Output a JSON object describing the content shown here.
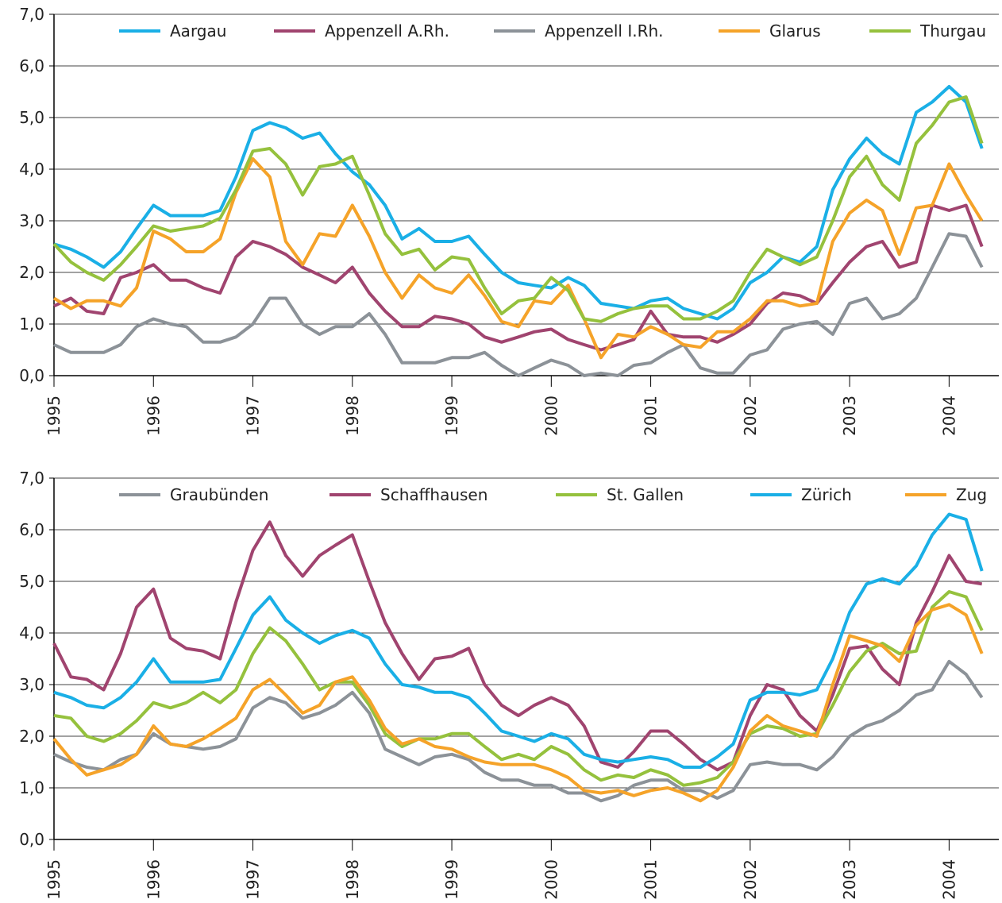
{
  "chart_data": [
    {
      "type": "line",
      "x": [
        1995,
        1995.17,
        1995.33,
        1995.5,
        1995.67,
        1995.83,
        1996,
        1996.17,
        1996.33,
        1996.5,
        1996.67,
        1996.83,
        1997,
        1997.17,
        1997.33,
        1997.5,
        1997.67,
        1997.83,
        1998,
        1998.17,
        1998.33,
        1998.5,
        1998.67,
        1998.83,
        1999,
        1999.17,
        1999.33,
        1999.5,
        1999.67,
        1999.83,
        2000,
        2000.17,
        2000.33,
        2000.5,
        2000.67,
        2000.83,
        2001,
        2001.17,
        2001.33,
        2001.5,
        2001.67,
        2001.83,
        2002,
        2002.17,
        2002.33,
        2002.5,
        2002.67,
        2002.83,
        2003,
        2003.17,
        2003.33,
        2003.5,
        2003.67,
        2003.83,
        2004,
        2004.17,
        2004.33
      ],
      "xlim": [
        1995,
        2004.5
      ],
      "xticks": [
        1995,
        1996,
        1997,
        1998,
        1999,
        2000,
        2001,
        2002,
        2003,
        2004
      ],
      "ylim": [
        0,
        7
      ],
      "yticks": [
        {
          "value": 0,
          "label": "0,0"
        },
        {
          "value": 1,
          "label": "1,0"
        },
        {
          "value": 2,
          "label": "2,0"
        },
        {
          "value": 3,
          "label": "3,0"
        },
        {
          "value": 4,
          "label": "4,0"
        },
        {
          "value": 5,
          "label": "5,0"
        },
        {
          "value": 6,
          "label": "6,0"
        },
        {
          "value": 7,
          "label": "7,0"
        }
      ],
      "grid": true,
      "legend": "top",
      "series": [
        {
          "name": "Aargau",
          "color": "#1aafe6",
          "values": [
            2.55,
            2.45,
            2.3,
            2.1,
            2.4,
            2.85,
            3.3,
            3.1,
            3.1,
            3.1,
            3.2,
            3.85,
            4.75,
            4.9,
            4.8,
            4.6,
            4.7,
            4.3,
            3.95,
            3.7,
            3.3,
            2.65,
            2.85,
            2.6,
            2.6,
            2.7,
            2.35,
            2.0,
            1.8,
            1.75,
            1.7,
            1.9,
            1.75,
            1.4,
            1.35,
            1.3,
            1.45,
            1.5,
            1.3,
            1.2,
            1.1,
            1.3,
            1.8,
            2.0,
            2.3,
            2.2,
            2.5,
            3.6,
            4.2,
            4.6,
            4.3,
            4.1,
            5.1,
            5.3,
            5.6,
            5.3,
            4.4
          ]
        },
        {
          "name": "Appenzell A.Rh.",
          "color": "#a0446f",
          "values": [
            1.35,
            1.5,
            1.25,
            1.2,
            1.9,
            2.0,
            2.15,
            1.85,
            1.85,
            1.7,
            1.6,
            2.3,
            2.6,
            2.5,
            2.35,
            2.1,
            1.95,
            1.8,
            2.1,
            1.6,
            1.25,
            0.95,
            0.95,
            1.15,
            1.1,
            1.0,
            0.75,
            0.65,
            0.75,
            0.85,
            0.9,
            0.7,
            0.6,
            0.5,
            0.6,
            0.7,
            1.25,
            0.8,
            0.75,
            0.75,
            0.65,
            0.8,
            1.0,
            1.4,
            1.6,
            1.55,
            1.4,
            1.8,
            2.2,
            2.5,
            2.6,
            2.1,
            2.2,
            3.3,
            3.2,
            3.3,
            2.5
          ]
        },
        {
          "name": "Appenzell I.Rh.",
          "color": "#8c9298",
          "values": [
            0.6,
            0.45,
            0.45,
            0.45,
            0.6,
            0.95,
            1.1,
            1.0,
            0.95,
            0.65,
            0.65,
            0.75,
            1.0,
            1.5,
            1.5,
            1.0,
            0.8,
            0.95,
            0.95,
            1.2,
            0.8,
            0.25,
            0.25,
            0.25,
            0.35,
            0.35,
            0.45,
            0.2,
            0,
            0.15,
            0.3,
            0.2,
            0,
            0.05,
            0,
            0.2,
            0.25,
            0.45,
            0.6,
            0.15,
            0.05,
            0.05,
            0.4,
            0.5,
            0.9,
            1.0,
            1.05,
            0.8,
            1.4,
            1.5,
            1.1,
            1.2,
            1.5,
            2.1,
            2.75,
            2.7,
            2.1
          ]
        },
        {
          "name": "Glarus",
          "color": "#f5a329",
          "values": [
            1.5,
            1.3,
            1.45,
            1.45,
            1.35,
            1.7,
            2.8,
            2.65,
            2.4,
            2.4,
            2.65,
            3.55,
            4.2,
            3.85,
            2.6,
            2.15,
            2.75,
            2.7,
            3.3,
            2.7,
            2.0,
            1.5,
            1.95,
            1.7,
            1.6,
            1.95,
            1.55,
            1.05,
            0.95,
            1.45,
            1.4,
            1.75,
            1.1,
            0.35,
            0.8,
            0.75,
            0.95,
            0.8,
            0.6,
            0.55,
            0.85,
            0.85,
            1.1,
            1.45,
            1.45,
            1.35,
            1.4,
            2.6,
            3.15,
            3.4,
            3.2,
            2.35,
            3.25,
            3.3,
            4.1,
            3.5,
            3.0
          ]
        },
        {
          "name": "Thurgau",
          "color": "#95c13d",
          "values": [
            2.55,
            2.2,
            2.0,
            1.85,
            2.15,
            2.5,
            2.9,
            2.8,
            2.85,
            2.9,
            3.05,
            3.6,
            4.35,
            4.4,
            4.1,
            3.5,
            4.05,
            4.1,
            4.25,
            3.5,
            2.75,
            2.35,
            2.45,
            2.05,
            2.3,
            2.25,
            1.7,
            1.2,
            1.45,
            1.5,
            1.9,
            1.65,
            1.1,
            1.05,
            1.2,
            1.3,
            1.35,
            1.35,
            1.1,
            1.1,
            1.25,
            1.45,
            2.0,
            2.45,
            2.3,
            2.15,
            2.3,
            3.0,
            3.85,
            4.25,
            3.7,
            3.4,
            4.5,
            4.85,
            5.3,
            5.4,
            4.5
          ]
        }
      ]
    },
    {
      "type": "line",
      "x": [
        1995,
        1995.17,
        1995.33,
        1995.5,
        1995.67,
        1995.83,
        1996,
        1996.17,
        1996.33,
        1996.5,
        1996.67,
        1996.83,
        1997,
        1997.17,
        1997.33,
        1997.5,
        1997.67,
        1997.83,
        1998,
        1998.17,
        1998.33,
        1998.5,
        1998.67,
        1998.83,
        1999,
        1999.17,
        1999.33,
        1999.5,
        1999.67,
        1999.83,
        2000,
        2000.17,
        2000.33,
        2000.5,
        2000.67,
        2000.83,
        2001,
        2001.17,
        2001.33,
        2001.5,
        2001.67,
        2001.83,
        2002,
        2002.17,
        2002.33,
        2002.5,
        2002.67,
        2002.83,
        2003,
        2003.17,
        2003.33,
        2003.5,
        2003.67,
        2003.83,
        2004,
        2004.17,
        2004.33
      ],
      "xlim": [
        1995,
        2004.5
      ],
      "xticks": [
        1995,
        1996,
        1997,
        1998,
        1999,
        2000,
        2001,
        2002,
        2003,
        2004
      ],
      "ylim": [
        0,
        7
      ],
      "yticks": [
        {
          "value": 0,
          "label": "0,0"
        },
        {
          "value": 1,
          "label": "1,0"
        },
        {
          "value": 2,
          "label": "2,0"
        },
        {
          "value": 3,
          "label": "3,0"
        },
        {
          "value": 4,
          "label": "4,0"
        },
        {
          "value": 5,
          "label": "5,0"
        },
        {
          "value": 6,
          "label": "6,0"
        },
        {
          "value": 7,
          "label": "7,0"
        }
      ],
      "grid": true,
      "legend": "top",
      "series": [
        {
          "name": "Graubünden",
          "color": "#8c9298",
          "values": [
            1.65,
            1.5,
            1.4,
            1.35,
            1.55,
            1.65,
            2.05,
            1.85,
            1.8,
            1.75,
            1.8,
            1.95,
            2.55,
            2.75,
            2.65,
            2.35,
            2.45,
            2.6,
            2.85,
            2.45,
            1.75,
            1.6,
            1.45,
            1.6,
            1.65,
            1.55,
            1.3,
            1.15,
            1.15,
            1.05,
            1.05,
            0.9,
            0.9,
            0.75,
            0.85,
            1.05,
            1.15,
            1.15,
            0.95,
            0.95,
            0.8,
            0.95,
            1.45,
            1.5,
            1.45,
            1.45,
            1.35,
            1.6,
            2.0,
            2.2,
            2.3,
            2.5,
            2.8,
            2.9,
            3.45,
            3.2,
            2.75
          ]
        },
        {
          "name": "Schaffhausen",
          "color": "#a0446f",
          "values": [
            3.8,
            3.15,
            3.1,
            2.9,
            3.6,
            4.5,
            4.85,
            3.9,
            3.7,
            3.65,
            3.5,
            4.6,
            5.6,
            6.15,
            5.5,
            5.1,
            5.5,
            5.7,
            5.9,
            5.0,
            4.2,
            3.6,
            3.1,
            3.5,
            3.55,
            3.7,
            3.0,
            2.6,
            2.4,
            2.6,
            2.75,
            2.6,
            2.2,
            1.5,
            1.4,
            1.7,
            2.1,
            2.1,
            1.85,
            1.55,
            1.35,
            1.5,
            2.4,
            3.0,
            2.9,
            2.4,
            2.1,
            2.8,
            3.7,
            3.75,
            3.3,
            3.0,
            4.2,
            4.8,
            5.5,
            5.0,
            4.95
          ]
        },
        {
          "name": "St. Gallen",
          "color": "#95c13d",
          "values": [
            2.4,
            2.35,
            2.0,
            1.9,
            2.05,
            2.3,
            2.65,
            2.55,
            2.65,
            2.85,
            2.65,
            2.9,
            3.6,
            4.1,
            3.85,
            3.4,
            2.9,
            3.05,
            3.05,
            2.6,
            2.05,
            1.8,
            1.95,
            1.95,
            2.05,
            2.05,
            1.8,
            1.55,
            1.65,
            1.55,
            1.8,
            1.65,
            1.35,
            1.15,
            1.25,
            1.2,
            1.35,
            1.25,
            1.05,
            1.1,
            1.2,
            1.5,
            2.05,
            2.2,
            2.15,
            2.0,
            2.05,
            2.6,
            3.25,
            3.65,
            3.8,
            3.6,
            3.65,
            4.5,
            4.8,
            4.7,
            4.05
          ]
        },
        {
          "name": "Zürich",
          "color": "#1aafe6",
          "values": [
            2.85,
            2.75,
            2.6,
            2.55,
            2.75,
            3.05,
            3.5,
            3.05,
            3.05,
            3.05,
            3.1,
            3.7,
            4.35,
            4.7,
            4.25,
            4.0,
            3.8,
            3.95,
            4.05,
            3.9,
            3.4,
            3.0,
            2.95,
            2.85,
            2.85,
            2.75,
            2.45,
            2.1,
            2.0,
            1.9,
            2.05,
            1.95,
            1.65,
            1.55,
            1.5,
            1.55,
            1.6,
            1.55,
            1.4,
            1.4,
            1.6,
            1.85,
            2.7,
            2.85,
            2.85,
            2.8,
            2.9,
            3.5,
            4.4,
            4.95,
            5.05,
            4.95,
            5.3,
            5.9,
            6.3,
            6.2,
            5.2
          ]
        },
        {
          "name": "Zug",
          "color": "#f5a329",
          "values": [
            1.95,
            1.55,
            1.25,
            1.35,
            1.45,
            1.65,
            2.2,
            1.85,
            1.8,
            1.95,
            2.15,
            2.35,
            2.9,
            3.1,
            2.8,
            2.45,
            2.6,
            3.05,
            3.15,
            2.7,
            2.15,
            1.85,
            1.95,
            1.8,
            1.75,
            1.6,
            1.5,
            1.45,
            1.45,
            1.45,
            1.35,
            1.2,
            0.95,
            0.9,
            0.95,
            0.85,
            0.95,
            1.0,
            0.9,
            0.75,
            0.95,
            1.4,
            2.1,
            2.4,
            2.2,
            2.1,
            2.0,
            3.0,
            3.95,
            3.85,
            3.75,
            3.45,
            4.15,
            4.45,
            4.55,
            4.35,
            3.6
          ]
        }
      ]
    }
  ]
}
